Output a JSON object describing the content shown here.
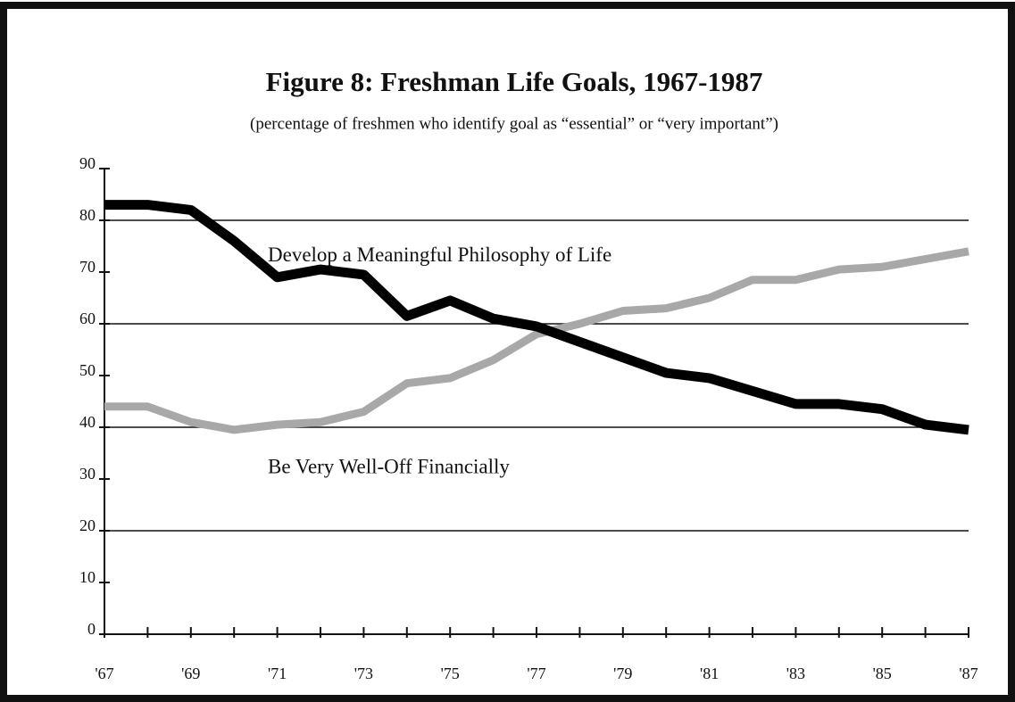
{
  "chart_data": {
    "type": "line",
    "title": "Figure 8: Freshman Life Goals, 1967-1987",
    "subtitle": "(percentage of freshmen who identify goal as “essential” or “very important”)",
    "categories": [
      "'67",
      null,
      "'69",
      null,
      "'71",
      null,
      "'73",
      null,
      "'75",
      null,
      "'77",
      null,
      "'79",
      null,
      "'81",
      null,
      "'83",
      null,
      "'85",
      null,
      "'87"
    ],
    "series": [
      {
        "name": "Develop a Meaningful Philosophy of Life",
        "color": "#000000",
        "values": [
          83,
          83,
          82,
          76,
          69,
          70.5,
          69.5,
          61.5,
          64.5,
          61,
          59.5,
          56.5,
          53.5,
          50.5,
          49.5,
          47,
          44.5,
          44.5,
          43.5,
          40.5,
          39.5
        ]
      },
      {
        "name": "Be Very Well-Off Financially",
        "color": "#a8a8a8",
        "values": [
          44,
          44,
          41,
          39.5,
          40.5,
          41,
          43,
          48.5,
          49.5,
          53,
          58,
          60,
          62.5,
          63,
          65,
          68.5,
          68.5,
          70.5,
          71,
          72.5,
          74
        ]
      }
    ],
    "ylim": [
      0,
      90
    ],
    "yticks": [
      0,
      10,
      20,
      30,
      40,
      50,
      60,
      70,
      80,
      90
    ],
    "grid_lines": [
      20,
      40,
      60,
      80
    ]
  }
}
